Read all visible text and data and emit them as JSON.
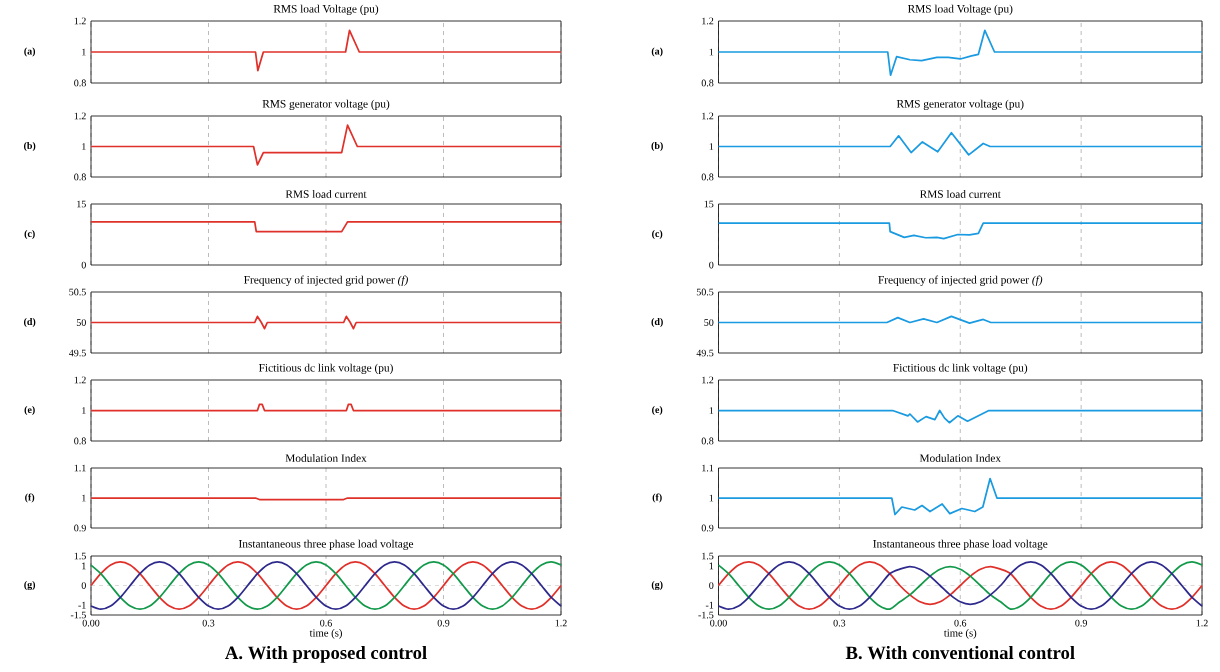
{
  "chart_data": [
    {
      "type": "line",
      "title": "RMS load Voltage (pu)",
      "ylabel": "(a)",
      "x": [
        0,
        0.42,
        0.426,
        0.44,
        0.65,
        0.66,
        0.685,
        1.2
      ],
      "series": [
        {
          "color": "#e0302a",
          "values": [
            1,
            1,
            0.88,
            1,
            1,
            1.14,
            1,
            1
          ]
        }
      ],
      "xlim": [
        0,
        1.2
      ],
      "xticks": [
        0,
        0.3,
        0.6,
        0.9,
        1.2
      ],
      "ylim": [
        0.8,
        1.2
      ],
      "yticks": [
        0.8,
        1,
        1.2
      ],
      "grid": "x",
      "tick_labels": "y"
    },
    {
      "type": "line",
      "title": "RMS generator voltage (pu)",
      "ylabel": "(b)",
      "x": [
        0,
        0.415,
        0.425,
        0.44,
        0.64,
        0.655,
        0.68,
        1.2
      ],
      "series": [
        {
          "color": "#e0302a",
          "values": [
            1,
            1,
            0.88,
            0.96,
            0.96,
            1.14,
            1,
            1
          ]
        }
      ],
      "xlim": [
        0,
        1.2
      ],
      "xticks": [
        0,
        0.3,
        0.6,
        0.9,
        1.2
      ],
      "ylim": [
        0.8,
        1.2
      ],
      "yticks": [
        0.8,
        1,
        1.2
      ],
      "grid": "x",
      "tick_labels": "y"
    },
    {
      "type": "line",
      "title": "RMS load current",
      "ylabel": "(c)",
      "x": [
        0,
        0.418,
        0.422,
        0.64,
        0.655,
        1.2
      ],
      "series": [
        {
          "color": "#e0302a",
          "values": [
            10.6,
            10.6,
            8.2,
            8.2,
            10.6,
            10.6
          ]
        }
      ],
      "xlim": [
        0,
        1.2
      ],
      "xticks": [
        0,
        0.3,
        0.6,
        0.9,
        1.2
      ],
      "ylim": [
        0,
        15
      ],
      "yticks": [
        0,
        15
      ],
      "grid": "x",
      "tick_labels": "y"
    },
    {
      "type": "line",
      "title": "Frequency of injected grid power *(f)*",
      "ylabel": "(d)",
      "x": [
        0,
        0.418,
        0.425,
        0.435,
        0.443,
        0.45,
        0.645,
        0.652,
        0.662,
        0.67,
        0.677,
        1.2
      ],
      "series": [
        {
          "color": "#e0302a",
          "values": [
            50,
            50,
            50.1,
            50,
            49.9,
            50,
            50,
            50.1,
            50,
            49.9,
            50,
            50
          ]
        }
      ],
      "xlim": [
        0,
        1.2
      ],
      "xticks": [
        0,
        0.3,
        0.6,
        0.9,
        1.2
      ],
      "ylim": [
        49.5,
        50.5
      ],
      "yticks": [
        49.5,
        50,
        50.5
      ],
      "grid": "x",
      "tick_labels": "y"
    },
    {
      "type": "line",
      "title": "Fictitious dc link voltage (pu)",
      "ylabel": "(e)",
      "x": [
        0,
        0.425,
        0.43,
        0.437,
        0.443,
        0.652,
        0.657,
        0.664,
        0.67,
        1.2
      ],
      "series": [
        {
          "color": "#e0302a",
          "values": [
            1,
            1,
            1.04,
            1.04,
            1,
            1,
            1.04,
            1.04,
            1,
            1
          ]
        }
      ],
      "xlim": [
        0,
        1.2
      ],
      "xticks": [
        0,
        0.3,
        0.6,
        0.9,
        1.2
      ],
      "ylim": [
        0.8,
        1.2
      ],
      "yticks": [
        0.8,
        1,
        1.2
      ],
      "grid": "x",
      "tick_labels": "y"
    },
    {
      "type": "line",
      "title": "Modulation Index",
      "ylabel": "(f)",
      "x": [
        0,
        0.42,
        0.43,
        0.645,
        0.655,
        1.2
      ],
      "series": [
        {
          "color": "#e0302a",
          "values": [
            1,
            1,
            0.995,
            0.995,
            1,
            1
          ]
        }
      ],
      "xlim": [
        0,
        1.2
      ],
      "xticks": [
        0,
        0.3,
        0.6,
        0.9,
        1.2
      ],
      "ylim": [
        0.9,
        1.1
      ],
      "yticks": [
        0.9,
        1,
        1.1
      ],
      "grid": "x",
      "tick_labels": "y"
    },
    {
      "type": "line",
      "title": "Instantaneous three phase load voltage",
      "ylabel": "(g)",
      "xlabel": "time (s)",
      "annotations": [
        "A. With proposed control"
      ],
      "x": [
        0,
        0.025,
        0.05,
        0.075,
        0.1,
        0.125,
        0.15,
        0.175,
        0.2,
        0.225,
        0.25,
        0.275,
        0.3,
        0.325,
        0.35,
        0.375,
        0.4,
        0.425,
        0.45,
        0.475,
        0.5,
        0.525,
        0.55,
        0.575,
        0.6,
        0.625,
        0.65,
        0.675,
        0.7,
        0.725,
        0.75,
        0.775,
        0.8,
        0.825,
        0.85,
        0.875,
        0.9,
        0.925,
        0.95,
        0.975,
        1,
        1.025,
        1.05,
        1.075,
        1.1,
        1.125,
        1.15,
        1.175,
        1.2
      ],
      "series": [
        {
          "color": "#e0302a",
          "values": [
            0,
            0.6,
            1.04,
            1.2,
            1.04,
            0.6,
            0,
            -0.6,
            -1.04,
            -1.2,
            -1.04,
            -0.6,
            0,
            0.6,
            1.04,
            1.2,
            1.04,
            0.6,
            0,
            -0.6,
            -1.04,
            -1.2,
            -1.04,
            -0.6,
            0,
            0.6,
            1.04,
            1.2,
            1.04,
            0.6,
            0,
            -0.6,
            -1.04,
            -1.2,
            -1.04,
            -0.6,
            0,
            0.6,
            1.04,
            1.2,
            1.04,
            0.6,
            0,
            -0.6,
            -1.04,
            -1.2,
            -1.04,
            -0.6,
            0
          ]
        },
        {
          "color": "#12994a",
          "values": [
            1.04,
            0.6,
            0,
            -0.6,
            -1.04,
            -1.2,
            -1.04,
            -0.6,
            0,
            0.6,
            1.04,
            1.2,
            1.04,
            0.6,
            0,
            -0.6,
            -1.04,
            -1.2,
            -1.04,
            -0.6,
            0,
            0.6,
            1.04,
            1.2,
            1.04,
            0.6,
            0,
            -0.6,
            -1.04,
            -1.2,
            -1.04,
            -0.6,
            0,
            0.6,
            1.04,
            1.2,
            1.04,
            0.6,
            0,
            -0.6,
            -1.04,
            -1.2,
            -1.04,
            -0.6,
            0,
            0.6,
            1.04,
            1.2,
            1.04
          ]
        },
        {
          "color": "#2e2a8c",
          "values": [
            -1.04,
            -1.2,
            -1.04,
            -0.6,
            0,
            0.6,
            1.04,
            1.2,
            1.04,
            0.6,
            0,
            -0.6,
            -1.04,
            -1.2,
            -1.04,
            -0.6,
            0,
            0.6,
            1.04,
            1.2,
            1.04,
            0.6,
            0,
            -0.6,
            -1.04,
            -1.2,
            -1.04,
            -0.6,
            0,
            0.6,
            1.04,
            1.2,
            1.04,
            0.6,
            0,
            -0.6,
            -1.04,
            -1.2,
            -1.04,
            -0.6,
            0,
            0.6,
            1.04,
            1.2,
            1.04,
            0.6,
            0,
            -0.6,
            -1.04
          ]
        }
      ],
      "ref_lines": [
        {
          "axis": "y",
          "value": 0,
          "color": "#c8c8c8",
          "line_style": "dashed"
        }
      ],
      "xlim": [
        0,
        1.2
      ],
      "xticks": [
        {
          "value": 0,
          "label": "0.00"
        },
        0.3,
        0.6,
        0.9,
        1.2
      ],
      "ylim": [
        -1.5,
        1.5
      ],
      "yticks": [
        -1.5,
        -1,
        0,
        1,
        1.5
      ],
      "grid": "x"
    },
    {
      "type": "line",
      "title": "RMS load Voltage (pu)",
      "ylabel": "(a)",
      "x": [
        0,
        0.42,
        0.427,
        0.442,
        0.475,
        0.504,
        0.542,
        0.57,
        0.6,
        0.628,
        0.645,
        0.661,
        0.685,
        1.2
      ],
      "series": [
        {
          "color": "#1a9ae0",
          "values": [
            1,
            1,
            0.85,
            0.97,
            0.95,
            0.945,
            0.965,
            0.965,
            0.955,
            0.975,
            0.985,
            1.14,
            1,
            1
          ]
        }
      ],
      "xlim": [
        0,
        1.2
      ],
      "xticks": [
        0,
        0.3,
        0.6,
        0.9,
        1.2
      ],
      "ylim": [
        0.8,
        1.2
      ],
      "yticks": [
        0.8,
        1,
        1.2
      ],
      "grid": "x",
      "tick_labels": "y"
    },
    {
      "type": "line",
      "title": "RMS generator voltage (pu)",
      "ylabel": "(b)",
      "x": [
        0,
        0.426,
        0.447,
        0.478,
        0.506,
        0.544,
        0.578,
        0.621,
        0.657,
        0.674,
        1.2
      ],
      "series": [
        {
          "color": "#1a9ae0",
          "values": [
            1,
            1,
            1.07,
            0.96,
            1.03,
            0.965,
            1.09,
            0.945,
            1.02,
            1,
            1
          ]
        }
      ],
      "xlim": [
        0,
        1.2
      ],
      "xticks": [
        0,
        0.3,
        0.6,
        0.9,
        1.2
      ],
      "ylim": [
        0.8,
        1.2
      ],
      "yticks": [
        0.8,
        1,
        1.2
      ],
      "grid": "x",
      "tick_labels": "y"
    },
    {
      "type": "line",
      "title": "RMS load current",
      "ylabel": "(c)",
      "x": [
        0,
        0.424,
        0.426,
        0.461,
        0.485,
        0.514,
        0.542,
        0.559,
        0.594,
        0.623,
        0.645,
        0.657,
        1.2
      ],
      "series": [
        {
          "color": "#1a9ae0",
          "values": [
            10.3,
            10.3,
            8.2,
            6.8,
            7.3,
            6.7,
            6.8,
            6.5,
            7.5,
            7.4,
            7.8,
            10.3,
            10.3
          ]
        }
      ],
      "xlim": [
        0,
        1.2
      ],
      "xticks": [
        0,
        0.3,
        0.6,
        0.9,
        1.2
      ],
      "ylim": [
        0,
        15
      ],
      "yticks": [
        0,
        15
      ],
      "grid": "x",
      "tick_labels": "y"
    },
    {
      "type": "line",
      "title": "Frequency of injected grid power *(f)*",
      "ylabel": "(d)",
      "x": [
        0,
        0.418,
        0.445,
        0.475,
        0.509,
        0.542,
        0.578,
        0.623,
        0.657,
        0.676,
        1.2
      ],
      "series": [
        {
          "color": "#1a9ae0",
          "values": [
            50,
            50,
            50.08,
            50,
            50.06,
            50,
            50.1,
            49.99,
            50.05,
            50,
            50
          ]
        }
      ],
      "xlim": [
        0,
        1.2
      ],
      "xticks": [
        0,
        0.3,
        0.6,
        0.9,
        1.2
      ],
      "ylim": [
        49.5,
        50.5
      ],
      "yticks": [
        49.5,
        50,
        50.5
      ],
      "grid": "x",
      "tick_labels": "y"
    },
    {
      "type": "line",
      "title": "Fictitious dc link voltage (pu)",
      "ylabel": "(e)",
      "x": [
        0,
        0.432,
        0.47,
        0.475,
        0.494,
        0.515,
        0.537,
        0.549,
        0.561,
        0.573,
        0.594,
        0.618,
        0.671,
        1.2
      ],
      "series": [
        {
          "color": "#1a9ae0",
          "values": [
            1,
            1,
            0.965,
            0.977,
            0.925,
            0.96,
            0.94,
            1,
            0.95,
            0.92,
            0.965,
            0.93,
            1,
            1
          ]
        }
      ],
      "xlim": [
        0,
        1.2
      ],
      "xticks": [
        0,
        0.3,
        0.6,
        0.9,
        1.2
      ],
      "ylim": [
        0.8,
        1.2
      ],
      "yticks": [
        0.8,
        1,
        1.2
      ],
      "grid": "x",
      "tick_labels": "y"
    },
    {
      "type": "line",
      "title": "Modulation Index",
      "ylabel": "(f)",
      "x": [
        0,
        0.43,
        0.438,
        0.455,
        0.487,
        0.505,
        0.525,
        0.555,
        0.574,
        0.604,
        0.636,
        0.656,
        0.674,
        0.691,
        1.2
      ],
      "series": [
        {
          "color": "#1a9ae0",
          "values": [
            1,
            1,
            0.945,
            0.97,
            0.96,
            0.975,
            0.955,
            0.98,
            0.948,
            0.965,
            0.955,
            0.97,
            1.065,
            1,
            1
          ]
        }
      ],
      "xlim": [
        0,
        1.2
      ],
      "xticks": [
        0,
        0.3,
        0.6,
        0.9,
        1.2
      ],
      "ylim": [
        0.9,
        1.1
      ],
      "yticks": [
        0.9,
        1,
        1.1
      ],
      "grid": "x",
      "tick_labels": "y"
    },
    {
      "type": "line",
      "title": "Instantaneous three phase load voltage",
      "ylabel": "(g)",
      "xlabel": "time (s)",
      "annotations": [
        "B. With conventional control"
      ],
      "x": [
        0,
        0.025,
        0.05,
        0.075,
        0.1,
        0.125,
        0.15,
        0.175,
        0.2,
        0.225,
        0.25,
        0.275,
        0.3,
        0.325,
        0.35,
        0.375,
        0.4,
        0.425,
        0.45,
        0.475,
        0.5,
        0.525,
        0.55,
        0.575,
        0.6,
        0.625,
        0.65,
        0.675,
        0.7,
        0.725,
        0.75,
        0.775,
        0.8,
        0.825,
        0.85,
        0.875,
        0.9,
        0.925,
        0.95,
        0.975,
        1,
        1.025,
        1.05,
        1.075,
        1.1,
        1.125,
        1.15,
        1.175,
        1.2
      ],
      "series": [
        {
          "color": "#e0302a",
          "values": [
            0,
            0.6,
            1.04,
            1.2,
            1.04,
            0.6,
            0,
            -0.6,
            -1.04,
            -1.2,
            -1.04,
            -0.6,
            0,
            0.6,
            1.04,
            1.2,
            1.04,
            0.6,
            0,
            -0.48,
            -0.83,
            -0.96,
            -0.83,
            -0.48,
            0,
            0.48,
            0.83,
            0.96,
            0.83,
            0.6,
            0,
            -0.6,
            -1.04,
            -1.2,
            -1.04,
            -0.6,
            0,
            0.6,
            1.04,
            1.2,
            1.04,
            0.6,
            0,
            -0.6,
            -1.04,
            -1.2,
            -1.04,
            -0.6,
            0
          ]
        },
        {
          "color": "#12994a",
          "values": [
            1.04,
            0.6,
            0,
            -0.6,
            -1.04,
            -1.2,
            -1.04,
            -0.6,
            0,
            0.6,
            1.04,
            1.2,
            1.04,
            0.6,
            0,
            -0.6,
            -1.04,
            -1.2,
            -0.83,
            -0.48,
            0,
            0.48,
            0.83,
            0.96,
            0.83,
            0.48,
            0,
            -0.48,
            -0.83,
            -1.2,
            -1.04,
            -0.6,
            0,
            0.6,
            1.04,
            1.2,
            1.04,
            0.6,
            0,
            -0.6,
            -1.04,
            -1.2,
            -1.04,
            -0.6,
            0,
            0.6,
            1.04,
            1.2,
            1.04
          ]
        },
        {
          "color": "#2e2a8c",
          "values": [
            -1.04,
            -1.2,
            -1.04,
            -0.6,
            0,
            0.6,
            1.04,
            1.2,
            1.04,
            0.6,
            0,
            -0.6,
            -1.04,
            -1.2,
            -1.04,
            -0.6,
            0,
            0.6,
            0.83,
            0.96,
            0.83,
            0.48,
            0,
            -0.48,
            -0.83,
            -0.96,
            -0.83,
            -0.48,
            0,
            0.6,
            1.04,
            1.2,
            1.04,
            0.6,
            0,
            -0.6,
            -1.04,
            -1.2,
            -1.04,
            -0.6,
            0,
            0.6,
            1.04,
            1.2,
            1.04,
            0.6,
            0,
            -0.6,
            -1.04
          ]
        }
      ],
      "ref_lines": [
        {
          "axis": "y",
          "value": 0,
          "color": "#c8c8c8",
          "line_style": "dashed"
        }
      ],
      "xlim": [
        0,
        1.2
      ],
      "xticks": [
        {
          "value": 0,
          "label": "0.00"
        },
        0.3,
        0.6,
        0.9,
        1.2
      ],
      "ylim": [
        -1.5,
        1.5
      ],
      "yticks": [
        -1.5,
        -1,
        0,
        1,
        1.5
      ],
      "grid": "x"
    }
  ]
}
